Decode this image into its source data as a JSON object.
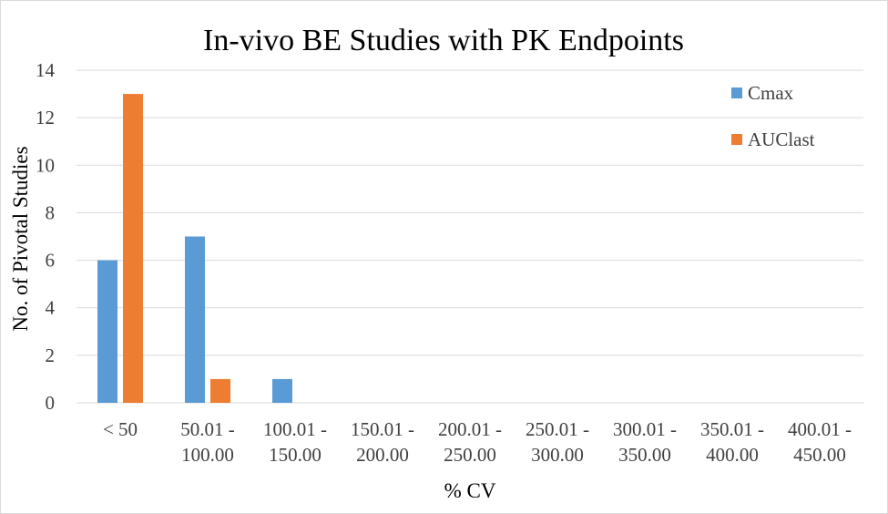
{
  "chart_data": {
    "type": "bar",
    "title": "In-vivo BE Studies with PK Endpoints",
    "xlabel": "% CV",
    "ylabel": "No. of Pivotal Studies",
    "categories": [
      [
        "< 50"
      ],
      [
        "50.01 -",
        "100.00"
      ],
      [
        "100.01 -",
        "150.00"
      ],
      [
        "150.01 -",
        "200.00"
      ],
      [
        "200.01 -",
        "250.00"
      ],
      [
        "250.01 -",
        "300.00"
      ],
      [
        "300.01 -",
        "350.00"
      ],
      [
        "350.01 -",
        "400.00"
      ],
      [
        "400.01 -",
        "450.00"
      ]
    ],
    "series": [
      {
        "name": "Cmax",
        "color": "#5b9bd5",
        "values": [
          6,
          7,
          1,
          0,
          0,
          0,
          0,
          0,
          0
        ]
      },
      {
        "name": "AUClast",
        "color": "#ed7d31",
        "values": [
          13,
          1,
          0,
          0,
          0,
          0,
          0,
          0,
          0
        ]
      }
    ],
    "ylim": [
      0,
      14
    ],
    "yticks": [
      0,
      2,
      4,
      6,
      8,
      10,
      12,
      14
    ],
    "grid": true,
    "legend_position": "top-right"
  }
}
